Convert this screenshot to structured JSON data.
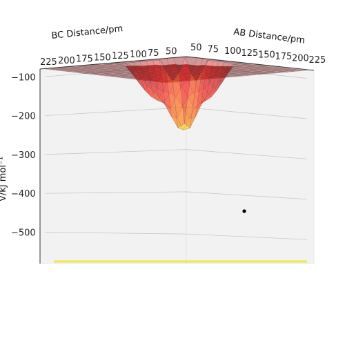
{
  "chart_data": {
    "type": "surface3d",
    "xlabel": "AB Distance/pm",
    "ylabel": "BC Distance/pm",
    "zlabel": "V/kJ mol⁻¹",
    "x_ticks": [
      "50",
      "75",
      "100",
      "125",
      "150",
      "175",
      "200",
      "225"
    ],
    "y_ticks": [
      "225",
      "200",
      "175",
      "150",
      "125",
      "100",
      "75",
      "50"
    ],
    "z_ticks": [
      "−100",
      "−200",
      "−300",
      "−400",
      "−500"
    ],
    "xlim": [
      50,
      225
    ],
    "ylim": [
      50,
      225
    ],
    "zlim": [
      -570,
      -80
    ],
    "colormap": "jet",
    "marker": {
      "ab": 125,
      "bc": 225,
      "v": -430,
      "color": "#000000"
    }
  }
}
